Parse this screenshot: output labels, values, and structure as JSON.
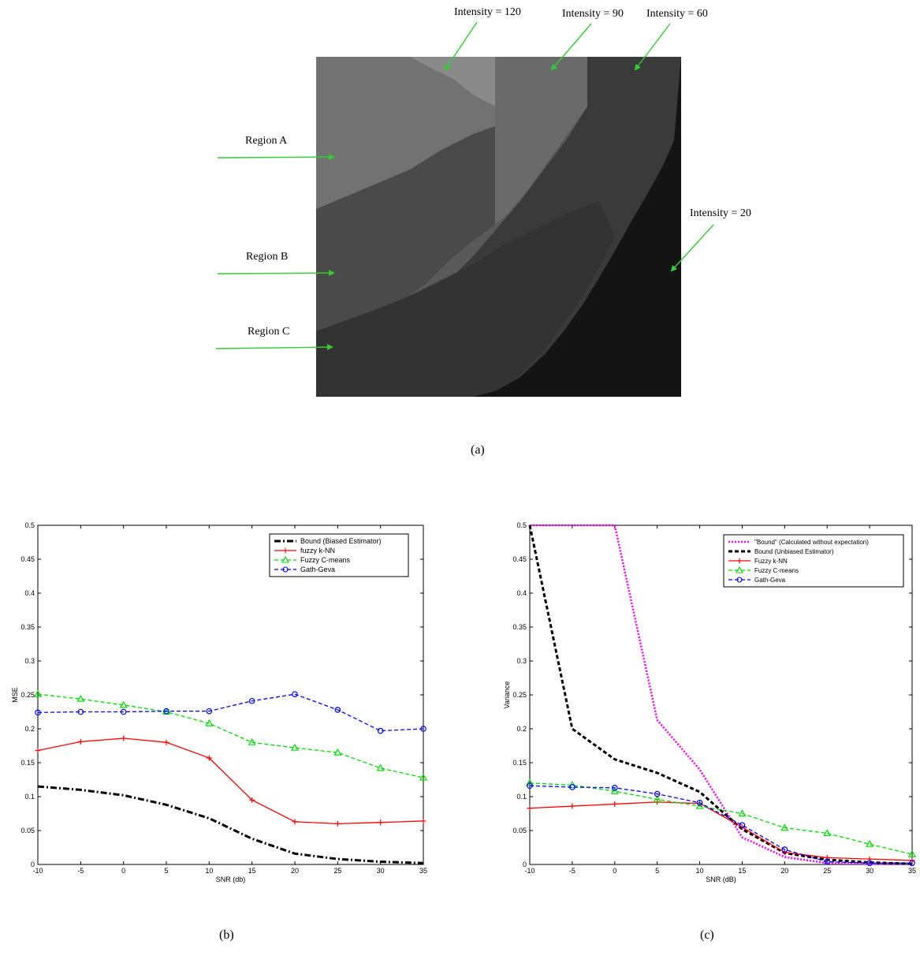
{
  "figure_a": {
    "caption": "(a)",
    "intensity_labels": [
      "Intensity = 120",
      "Intensity = 90",
      "Intensity = 60",
      "Intensity = 20"
    ],
    "region_labels": [
      "Region A",
      "Region B",
      "Region C"
    ],
    "colors": {
      "arrow": "#33cc33",
      "i120": "#787878",
      "i90": "#5a5a5a",
      "i60": "#3c3c3c",
      "i20": "#141414"
    }
  },
  "captions": {
    "b": "(b)",
    "c": "(c)"
  },
  "chart_data": [
    {
      "type": "line",
      "xlabel": "SNR (db)",
      "ylabel": "MSE",
      "x": [
        -10,
        -5,
        0,
        5,
        10,
        15,
        20,
        25,
        30,
        35
      ],
      "xlim": [
        -10,
        35
      ],
      "ylim": [
        0,
        0.5
      ],
      "xticks": [
        "-10",
        "-5",
        "0",
        "5",
        "10",
        "15",
        "20",
        "25",
        "30",
        "35"
      ],
      "yticks": [
        "0",
        "0.05",
        "0.1",
        "0.15",
        "0.2",
        "0.25",
        "0.3",
        "0.35",
        "0.4",
        "0.45",
        "0.5"
      ],
      "legend_position": "top-right",
      "grid": false,
      "series": [
        {
          "name": "Bound (Biased Estimator)",
          "color": "#000000",
          "dash": "dashdot",
          "marker": "none",
          "values": [
            0.115,
            0.11,
            0.102,
            0.088,
            0.068,
            0.038,
            0.016,
            0.008,
            0.004,
            0.002
          ]
        },
        {
          "name": "fuzzy k-NN",
          "color": "#ff0000",
          "dash": "solid",
          "marker": "plus",
          "values": [
            0.168,
            0.181,
            0.186,
            0.18,
            0.157,
            0.095,
            0.063,
            0.06,
            0.062,
            0.064
          ]
        },
        {
          "name": "Fuzzy C-means",
          "color": "#00dd00",
          "dash": "dashed",
          "marker": "triangle",
          "values": [
            0.251,
            0.244,
            0.235,
            0.225,
            0.208,
            0.18,
            0.172,
            0.165,
            0.142,
            0.128
          ]
        },
        {
          "name": "Gath-Geva",
          "color": "#0000ff",
          "dash": "dashed",
          "marker": "circle",
          "values": [
            0.224,
            0.225,
            0.225,
            0.226,
            0.226,
            0.241,
            0.251,
            0.228,
            0.197,
            0.2
          ]
        }
      ]
    },
    {
      "type": "line",
      "xlabel": "SNR (dB)",
      "ylabel": "Variance",
      "x": [
        -10,
        -5,
        0,
        5,
        10,
        15,
        20,
        25,
        30,
        35
      ],
      "xlim": [
        -10,
        35
      ],
      "ylim": [
        0,
        0.5
      ],
      "xticks": [
        "-10",
        "-5",
        "0",
        "5",
        "10",
        "15",
        "20",
        "25",
        "30",
        "35"
      ],
      "yticks": [
        "0",
        "0.05",
        "0.1",
        "0.15",
        "0.2",
        "0.25",
        "0.3",
        "0.35",
        "0.4",
        "0.45",
        "0.5"
      ],
      "legend_position": "top-right",
      "grid": false,
      "series": [
        {
          "name": "\"Bound\" (Calculated without expectation)",
          "color": "#ff00ff",
          "dash": "dotted",
          "marker": "none",
          "values": [
            0.5,
            0.5,
            0.5,
            0.213,
            0.14,
            0.04,
            0.011,
            0.002,
            0.001,
            0.0005
          ]
        },
        {
          "name": "Bound (Unbiased Estimator)",
          "color": "#000000",
          "dash": "dashed",
          "marker": "none",
          "values": [
            0.5,
            0.2,
            0.155,
            0.135,
            0.107,
            0.052,
            0.017,
            0.007,
            0.003,
            0.001
          ]
        },
        {
          "name": "Fuzzy k-NN",
          "color": "#ff0000",
          "dash": "solid",
          "marker": "plus",
          "values": [
            0.083,
            0.086,
            0.089,
            0.092,
            0.09,
            0.055,
            0.018,
            0.01,
            0.008,
            0.006
          ]
        },
        {
          "name": "Fuzzy C-means",
          "color": "#00dd00",
          "dash": "dashed",
          "marker": "triangle",
          "values": [
            0.12,
            0.117,
            0.108,
            0.096,
            0.086,
            0.075,
            0.054,
            0.046,
            0.03,
            0.015
          ]
        },
        {
          "name": "Gath-Geva",
          "color": "#0000ff",
          "dash": "dashed",
          "marker": "circle",
          "values": [
            0.116,
            0.114,
            0.113,
            0.104,
            0.091,
            0.058,
            0.022,
            0.004,
            0.002,
            0.002
          ]
        }
      ]
    }
  ]
}
